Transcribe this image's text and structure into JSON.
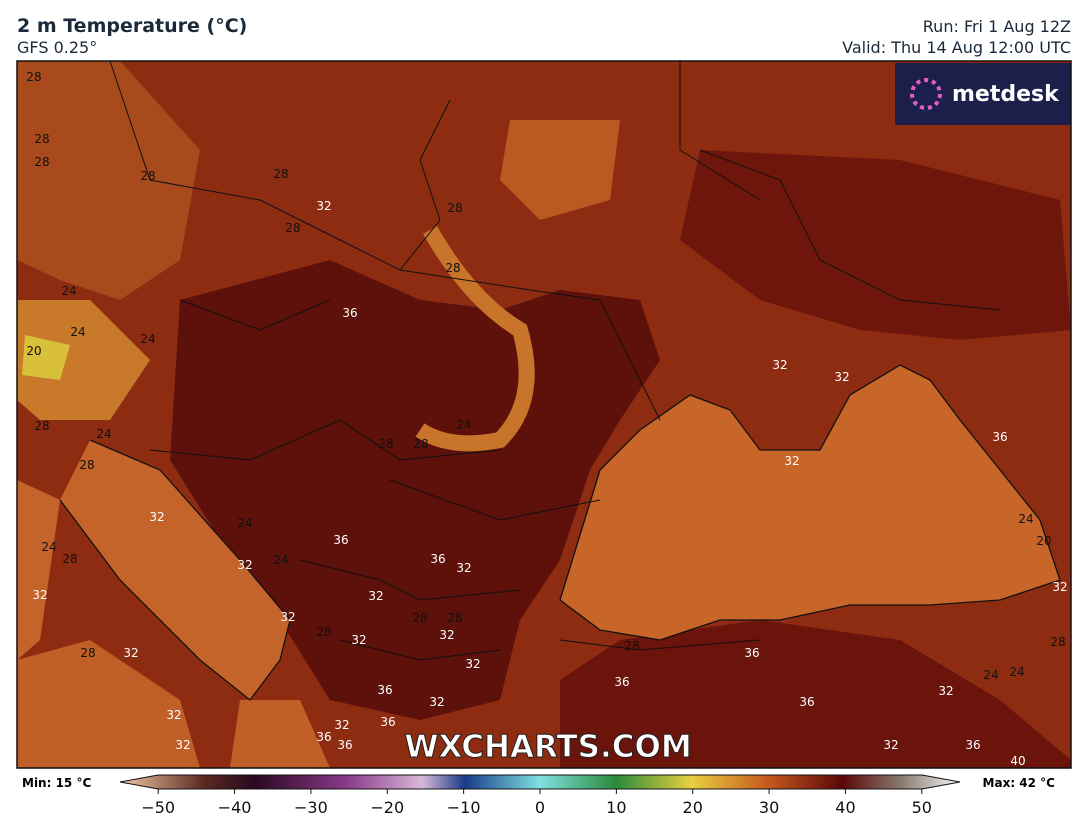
{
  "header": {
    "title": "2 m Temperature (°C)",
    "subtitle": "GFS 0.25°",
    "run": "Run: Fri 1 Aug 12Z",
    "valid": "Valid: Thu 14 Aug 12:00 UTC"
  },
  "logo": "metdesk",
  "watermark": "WXCHARTS.COM",
  "contour_labels": [
    28,
    28,
    28,
    28,
    28,
    32,
    28,
    28,
    28,
    24,
    24,
    24,
    36,
    20,
    28,
    24,
    28,
    28,
    28,
    24,
    32,
    32,
    36,
    32,
    32,
    24,
    36,
    24,
    28,
    24,
    32,
    36,
    32,
    32,
    32,
    32,
    28,
    28,
    28,
    32,
    32,
    24,
    20,
    32,
    28,
    28,
    36,
    32,
    28,
    32,
    36,
    36,
    32,
    24,
    24,
    32,
    36,
    32,
    36,
    32,
    36,
    36,
    32,
    32,
    36,
    40
  ],
  "colorbar": {
    "min_label": "Min: 15 °C",
    "max_label": "Max: 42 °C",
    "lim": [
      -55,
      55
    ],
    "ticks": [
      {
        "value": -50,
        "label": "−50"
      },
      {
        "value": -40,
        "label": "−40"
      },
      {
        "value": -30,
        "label": "−30"
      },
      {
        "value": -20,
        "label": "−20"
      },
      {
        "value": -10,
        "label": "−10"
      },
      0,
      10,
      20,
      30,
      40,
      50
    ]
  }
}
